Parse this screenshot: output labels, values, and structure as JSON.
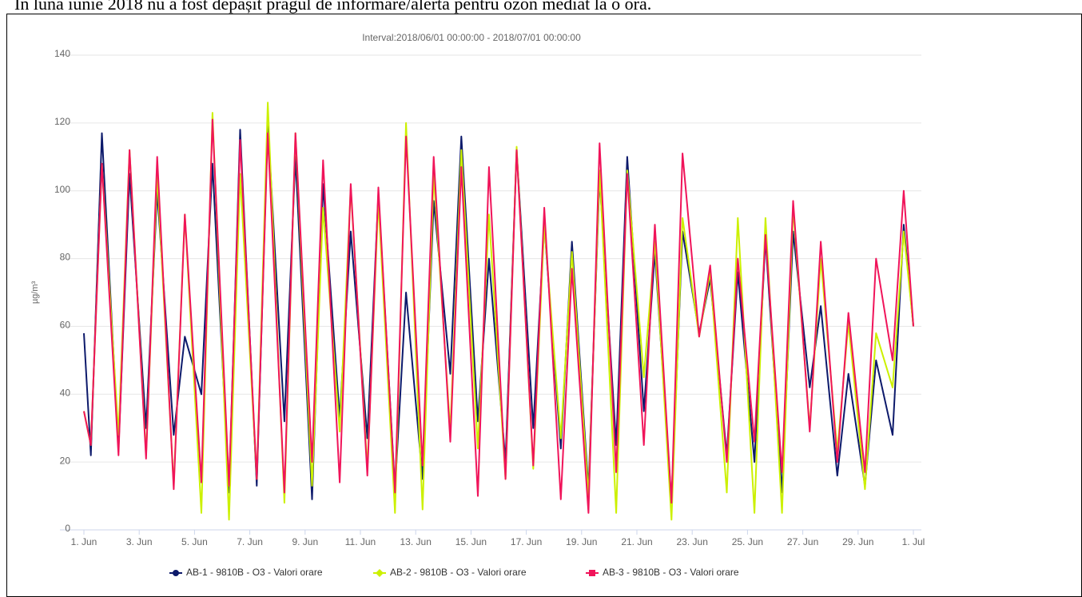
{
  "note": "În luna iunie 2018 nu a fost depășit pragul de informare/alertă pentru ozon mediat la o oră.",
  "chart_data": {
    "type": "line",
    "title": "Interval:2018/06/01 00:00:00 - 2018/07/01 00:00:00",
    "y_label": "µg/m³",
    "x": [
      0,
      0.25,
      0.65,
      1.25,
      1.65,
      2.25,
      2.65,
      3.25,
      3.65,
      4.25,
      4.65,
      5.25,
      5.65,
      6.25,
      6.65,
      7.25,
      7.65,
      8.25,
      8.65,
      9.25,
      9.65,
      10.25,
      10.65,
      11.25,
      11.65,
      12.25,
      12.65,
      13.25,
      13.65,
      14.25,
      14.65,
      15.25,
      15.65,
      16.25,
      16.65,
      17.25,
      17.65,
      18.25,
      18.65,
      19.25,
      19.65,
      20.25,
      20.65,
      21.25,
      21.65,
      22.25,
      22.65,
      23.25,
      23.65,
      24.25,
      24.65,
      25.25,
      25.65,
      26.25,
      26.65,
      27.25,
      27.65,
      28.25,
      28.65,
      29.25,
      29.65,
      30
    ],
    "xlim": [
      0,
      30
    ],
    "xticks": [
      {
        "value": 0,
        "label": "1. Jun"
      },
      {
        "value": 2,
        "label": "3. Jun"
      },
      {
        "value": 4,
        "label": "5. Jun"
      },
      {
        "value": 6,
        "label": "7. Jun"
      },
      {
        "value": 8,
        "label": "9. Jun"
      },
      {
        "value": 10,
        "label": "11. Jun"
      },
      {
        "value": 12,
        "label": "13. Jun"
      },
      {
        "value": 14,
        "label": "15. Jun"
      },
      {
        "value": 16,
        "label": "17. Jun"
      },
      {
        "value": 18,
        "label": "19. Jun"
      },
      {
        "value": 20,
        "label": "21. Jun"
      },
      {
        "value": 22,
        "label": "23. Jun"
      },
      {
        "value": 24,
        "label": "25. Jun"
      },
      {
        "value": 26,
        "label": "27. Jun"
      },
      {
        "value": 28,
        "label": "29. Jun"
      },
      {
        "value": 30,
        "label": "1. Jul"
      }
    ],
    "ylim": [
      0,
      140
    ],
    "yticks": [
      0,
      20,
      40,
      60,
      80,
      100,
      120,
      140
    ],
    "grid": true,
    "series": [
      {
        "name": "AB-1 - 9810B - O3 - Valori orare",
        "color": "#0d1a6b",
        "marker": "circle",
        "values": [
          58,
          22,
          117,
          24,
          105,
          30,
          100,
          28,
          57,
          40,
          108,
          11,
          118,
          13,
          120,
          32,
          110,
          9,
          102,
          33,
          88,
          27,
          99,
          12,
          70,
          15,
          97,
          46,
          116,
          32,
          80,
          20,
          112,
          30,
          90,
          24,
          85,
          12,
          104,
          25,
          110,
          35,
          82,
          8,
          88,
          58,
          74,
          22,
          76,
          20,
          86,
          11,
          88,
          42,
          66,
          16,
          46,
          13,
          50,
          28,
          90,
          60
        ]
      },
      {
        "name": "AB-2 - 9810B - O3 - Valori orare",
        "color": "#ccf000",
        "marker": "diamond",
        "values": [
          35,
          25,
          108,
          28,
          112,
          22,
          105,
          13,
          93,
          5,
          123,
          3,
          105,
          15,
          126,
          8,
          117,
          13,
          95,
          29,
          101,
          18,
          97,
          5,
          120,
          6,
          105,
          29,
          112,
          24,
          93,
          15,
          113,
          18,
          90,
          27,
          82,
          10,
          106,
          5,
          106,
          45,
          85,
          3,
          92,
          57,
          76,
          11,
          92,
          5,
          92,
          5,
          95,
          30,
          80,
          23,
          61,
          12,
          58,
          42,
          88,
          60
        ]
      },
      {
        "name": "AB-3 - 9810B - O3 - Valori orare",
        "color": "#f0145a",
        "marker": "square",
        "values": [
          35,
          25,
          108,
          22,
          112,
          21,
          110,
          12,
          93,
          14,
          121,
          13,
          115,
          15,
          117,
          11,
          117,
          20,
          109,
          14,
          102,
          16,
          101,
          11,
          116,
          19,
          110,
          26,
          107,
          10,
          107,
          15,
          112,
          19,
          95,
          9,
          77,
          5,
          114,
          17,
          105,
          25,
          90,
          8,
          111,
          57,
          78,
          20,
          80,
          26,
          87,
          17,
          97,
          29,
          85,
          20,
          64,
          17,
          80,
          50,
          100,
          60
        ]
      }
    ]
  }
}
